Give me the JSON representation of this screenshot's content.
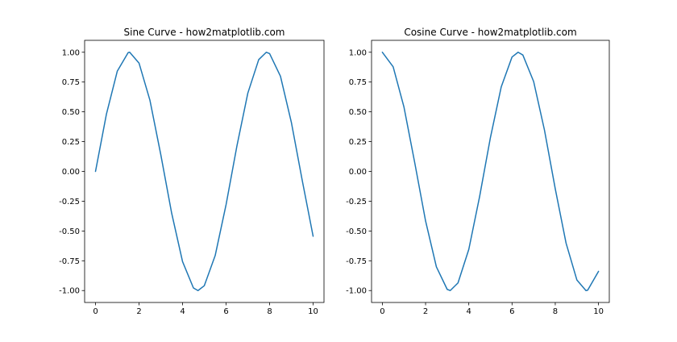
{
  "chart_data": [
    {
      "type": "line",
      "title": "Sine Curve - how2matplotlib.com",
      "xlabel": "",
      "ylabel": "",
      "xlim": [
        -0.5,
        10.5
      ],
      "ylim": [
        -1.1,
        1.1
      ],
      "xticks": [
        0,
        2,
        4,
        6,
        8,
        10
      ],
      "xtick_labels": [
        "0",
        "2",
        "4",
        "6",
        "8",
        "10"
      ],
      "yticks": [
        1.0,
        0.75,
        0.5,
        0.25,
        0.0,
        -0.25,
        -0.5,
        -0.75,
        -1.0
      ],
      "ytick_labels": [
        "1.00",
        "0.75",
        "0.50",
        "0.25",
        "0.00",
        "-0.25",
        "-0.50",
        "-0.75",
        "-1.00"
      ],
      "grid": false,
      "series": [
        {
          "color": "#1f77b4",
          "x": [
            0.0,
            0.5,
            1.0,
            1.5,
            1.57,
            2.0,
            2.5,
            3.0,
            3.5,
            4.0,
            4.5,
            4.71,
            5.0,
            5.5,
            6.0,
            6.5,
            7.0,
            7.5,
            7.85,
            8.0,
            8.5,
            9.0,
            9.5,
            10.0
          ],
          "values": [
            0.0,
            0.479,
            0.841,
            0.997,
            1.0,
            0.909,
            0.598,
            0.141,
            -0.351,
            -0.757,
            -0.978,
            -1.0,
            -0.959,
            -0.706,
            -0.279,
            0.215,
            0.657,
            0.938,
            1.0,
            0.989,
            0.798,
            0.412,
            -0.075,
            -0.544
          ]
        }
      ]
    },
    {
      "type": "line",
      "title": "Cosine Curve - how2matplotlib.com",
      "xlabel": "",
      "ylabel": "",
      "xlim": [
        -0.5,
        10.5
      ],
      "ylim": [
        -1.1,
        1.1
      ],
      "xticks": [
        0,
        2,
        4,
        6,
        8,
        10
      ],
      "xtick_labels": [
        "0",
        "2",
        "4",
        "6",
        "8",
        "10"
      ],
      "yticks": [
        1.0,
        0.75,
        0.5,
        0.25,
        0.0,
        -0.25,
        -0.5,
        -0.75,
        -1.0
      ],
      "ytick_labels": [
        "1.00",
        "0.75",
        "0.50",
        "0.25",
        "0.00",
        "-0.25",
        "-0.50",
        "-0.75",
        "-1.00"
      ],
      "grid": false,
      "series": [
        {
          "color": "#1f77b4",
          "x": [
            0.0,
            0.5,
            1.0,
            1.5,
            2.0,
            2.5,
            3.0,
            3.14,
            3.5,
            4.0,
            4.5,
            5.0,
            5.5,
            6.0,
            6.28,
            6.5,
            7.0,
            7.5,
            8.0,
            8.5,
            9.0,
            9.42,
            9.5,
            10.0
          ],
          "values": [
            1.0,
            0.878,
            0.54,
            0.071,
            -0.416,
            -0.801,
            -0.99,
            -1.0,
            -0.936,
            -0.654,
            -0.211,
            0.284,
            0.709,
            0.96,
            1.0,
            0.977,
            0.754,
            0.347,
            -0.146,
            -0.602,
            -0.911,
            -1.0,
            -0.997,
            -0.839
          ]
        }
      ]
    }
  ]
}
